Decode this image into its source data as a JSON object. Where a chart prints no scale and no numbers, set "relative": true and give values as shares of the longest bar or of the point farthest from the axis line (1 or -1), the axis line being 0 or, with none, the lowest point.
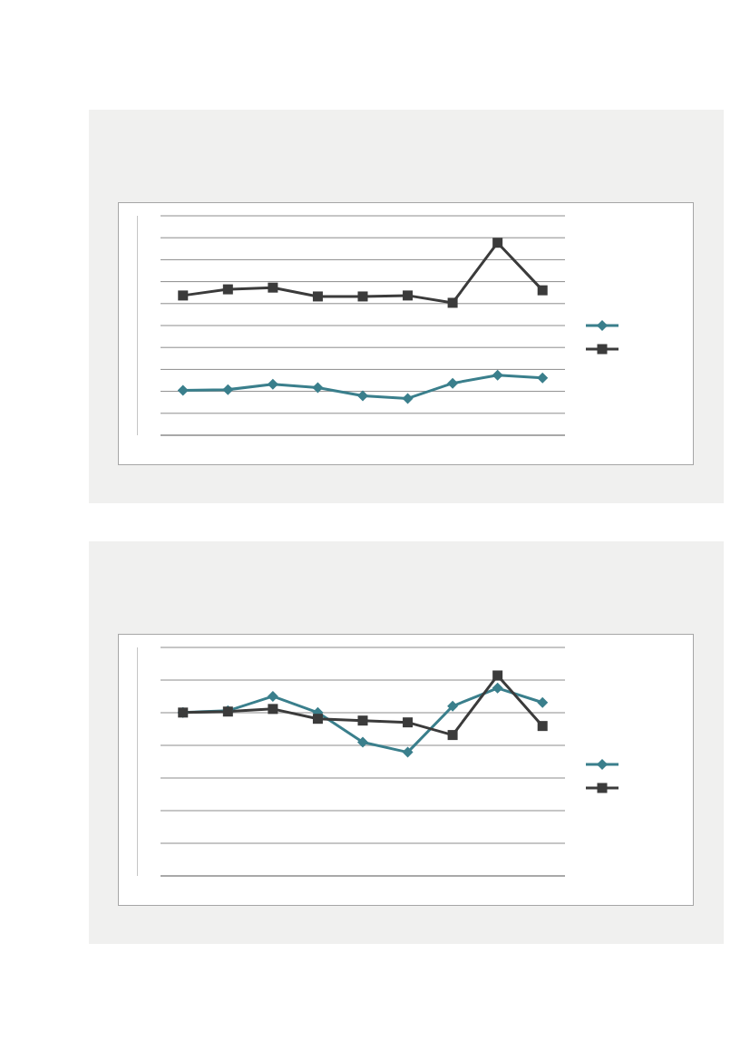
{
  "chart_data": [
    {
      "type": "line",
      "relative": true,
      "categories": [
        null,
        null,
        null,
        null,
        null,
        null,
        null,
        null,
        null
      ],
      "grid": "y",
      "tick_labels": false,
      "series": [
        {
          "color": "#3a7f8c",
          "marker": "diamond",
          "values": [
            0.233,
            0.237,
            0.265,
            0.247,
            0.205,
            0.191,
            0.27,
            0.312,
            0.298
          ]
        },
        {
          "color": "#3b3b3b",
          "marker": "square",
          "values": [
            0.726,
            0.758,
            0.767,
            0.721,
            0.721,
            0.726,
            0.688,
            1,
            0.753
          ]
        }
      ]
    },
    {
      "type": "line",
      "relative": true,
      "categories": [
        null,
        null,
        null,
        null,
        null,
        null,
        null,
        null,
        null
      ],
      "grid": "y",
      "tick_labels": false,
      "series": [
        {
          "color": "#3a7f8c",
          "marker": "diamond",
          "values": [
            0.815,
            0.824,
            0.896,
            0.815,
            0.667,
            0.617,
            0.847,
            0.937,
            0.865
          ]
        },
        {
          "color": "#3b3b3b",
          "marker": "square",
          "values": [
            0.815,
            0.82,
            0.833,
            0.784,
            0.775,
            0.766,
            0.703,
            1,
            0.748
          ]
        }
      ]
    }
  ]
}
